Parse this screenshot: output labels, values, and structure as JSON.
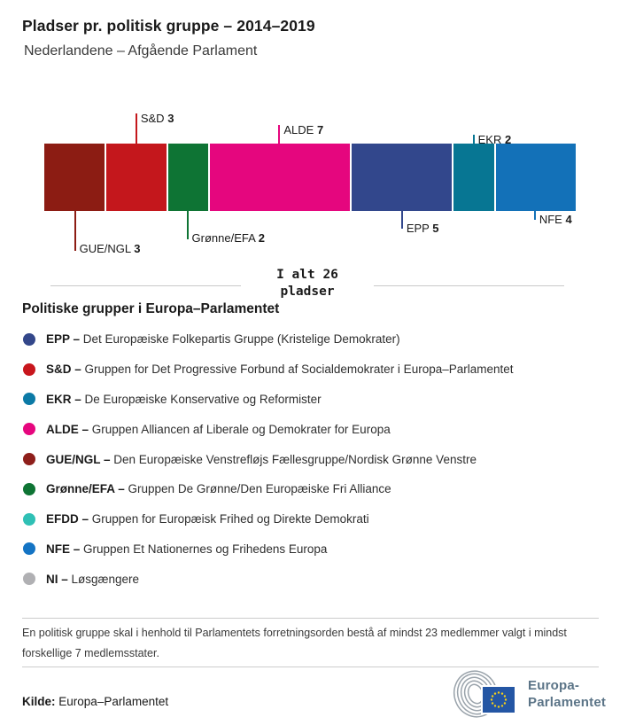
{
  "header": {
    "title": "Pladser pr. politisk gruppe – 2014–2019",
    "subtitle": "Nederlandene – Afgående Parlament"
  },
  "chart_data": {
    "type": "bar",
    "stacked": true,
    "title": "Pladser pr. politisk gruppe – 2014–2019",
    "subtitle": "Nederlandene – Afgående Parlament",
    "total_seats": 26,
    "categories": [
      "GUE/NGL",
      "S&D",
      "Grønne/EFA",
      "ALDE",
      "EPP",
      "EKR",
      "NFE"
    ],
    "values": [
      3,
      3,
      2,
      7,
      5,
      2,
      4
    ],
    "segments": [
      {
        "abbr": "GUE/NGL",
        "seats": 3,
        "color": "#8c1c13",
        "label_side": "below",
        "label_tier": 4
      },
      {
        "abbr": "S&D",
        "seats": 3,
        "color": "#c4171c",
        "label_side": "above",
        "label_tier": 3
      },
      {
        "abbr": "Grønne/EFA",
        "seats": 2,
        "color": "#0e7434",
        "label_side": "below",
        "label_tier": 3
      },
      {
        "abbr": "ALDE",
        "seats": 7,
        "color": "#e5067e",
        "label_side": "above",
        "label_tier": 2
      },
      {
        "abbr": "EPP",
        "seats": 5,
        "color": "#32478c",
        "label_side": "below",
        "label_tier": 2
      },
      {
        "abbr": "EKR",
        "seats": 2,
        "color": "#077693",
        "label_side": "above",
        "label_tier": 1
      },
      {
        "abbr": "NFE",
        "seats": 4,
        "color": "#1371b8",
        "label_side": "below",
        "label_tier": 1
      }
    ]
  },
  "total": {
    "line1": "I alt 26",
    "line2": "pladser"
  },
  "legend": {
    "title": "Politiske grupper i Europa–Parlamentet",
    "dash": "–",
    "items": [
      {
        "abbr": "EPP",
        "desc": "Det Europæiske Folkepartis Gruppe (Kristelige Demokrater)",
        "color": "#33478a"
      },
      {
        "abbr": "S&D",
        "desc": "Gruppen for Det Progressive Forbund af Socialdemokrater i Europa–Parlamentet",
        "color": "#c8161d"
      },
      {
        "abbr": "EKR",
        "desc": "De Europæiske Konservative og Reformister",
        "color": "#0c7aa6"
      },
      {
        "abbr": "ALDE",
        "desc": "Gruppen Alliancen af Liberale og Demokrater for Europa",
        "color": "#e6067e"
      },
      {
        "abbr": "GUE/NGL",
        "desc": "Den Europæiske Venstrefløjs Fællesgruppe/Nordisk Grønne Venstre",
        "color": "#8e1f1b"
      },
      {
        "abbr": "Grønne/EFA",
        "desc": "Gruppen De Grønne/Den Europæiske Fri Alliance",
        "color": "#0e7434"
      },
      {
        "abbr": "EFDD",
        "desc": "Gruppen for Europæisk Frihed og Direkte Demokrati",
        "color": "#2fc0b5"
      },
      {
        "abbr": "NFE",
        "desc": "Gruppen Et Nationernes og Frihedens Europa",
        "color": "#1474c4"
      },
      {
        "abbr": "NI",
        "desc": "Løsgængere",
        "color": "#b0b0b3"
      }
    ]
  },
  "footnote": "En politisk gruppe skal i henhold til Parlamentets forretningsorden bestå af mindst 23 medlemmer valgt i mindst forskellige 7 medlemsstater.",
  "source": {
    "label": "Kilde:",
    "text": "Europa–Parlamentet"
  },
  "logo": {
    "line1": "Europa-",
    "line2": "Parlamentet",
    "flag_color": "#2456a4",
    "star_color": "#f7d117",
    "arc_color": "#9aa3ab",
    "text_color": "#5b7487"
  }
}
